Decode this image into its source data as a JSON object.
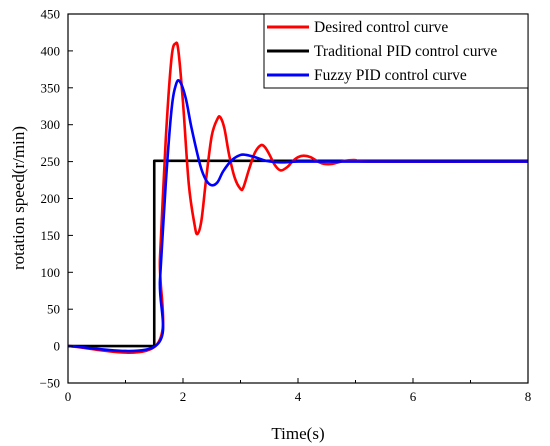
{
  "chart_data": {
    "type": "line",
    "xlabel": "Time(s)",
    "ylabel": "rotation speed(r/min)",
    "xlim": [
      0,
      8
    ],
    "ylim": [
      -50,
      450
    ],
    "xticks": [
      0,
      2,
      4,
      6,
      8
    ],
    "yticks": [
      -50,
      0,
      50,
      100,
      150,
      200,
      250,
      300,
      350,
      400,
      450
    ],
    "xtick_labels": [
      "0",
      "2",
      "4",
      "6",
      "8"
    ],
    "ytick_labels": [
      "−50",
      "0",
      "50",
      "100",
      "150",
      "200",
      "250",
      "300",
      "350",
      "400",
      "450"
    ],
    "grid": false,
    "legend_position": "top-right",
    "series": [
      {
        "name": "Desired control curve",
        "color": "#ff0000",
        "x": [
          0,
          1.52,
          1.6,
          1.7,
          1.8,
          1.87,
          1.92,
          2.0,
          2.1,
          2.2,
          2.25,
          2.32,
          2.4,
          2.5,
          2.6,
          2.65,
          2.72,
          2.8,
          2.9,
          3.0,
          3.05,
          3.15,
          3.25,
          3.35,
          3.42,
          3.5,
          3.6,
          3.7,
          3.82,
          3.9,
          4.0,
          4.1,
          4.22,
          4.35,
          4.45,
          4.6,
          4.8,
          5.0,
          5.3,
          8.0
        ],
        "y": [
          0,
          0,
          120,
          280,
          390,
          410,
          400,
          330,
          220,
          165,
          152,
          170,
          225,
          285,
          308,
          310,
          295,
          260,
          228,
          213,
          215,
          240,
          262,
          272,
          270,
          260,
          245,
          238,
          243,
          250,
          256,
          258,
          256,
          250,
          247,
          247,
          251,
          252,
          250,
          250
        ]
      },
      {
        "name": "Traditional PID control curve",
        "color": "#000000",
        "x": [
          0,
          1.5,
          1.5,
          8.0
        ],
        "y": [
          0,
          0,
          251,
          251
        ]
      },
      {
        "name": "Fuzzy PID control curve",
        "color": "#0000ff",
        "x": [
          0,
          1.52,
          1.6,
          1.7,
          1.8,
          1.88,
          1.95,
          2.05,
          2.15,
          2.3,
          2.4,
          2.5,
          2.6,
          2.7,
          2.85,
          3.0,
          3.1,
          3.25,
          3.45,
          3.7,
          4.0,
          4.5,
          8.0
        ],
        "y": [
          0,
          0,
          90,
          220,
          320,
          355,
          358,
          335,
          295,
          245,
          225,
          218,
          222,
          237,
          252,
          259,
          259,
          256,
          251,
          249,
          250,
          250,
          250
        ]
      }
    ]
  }
}
